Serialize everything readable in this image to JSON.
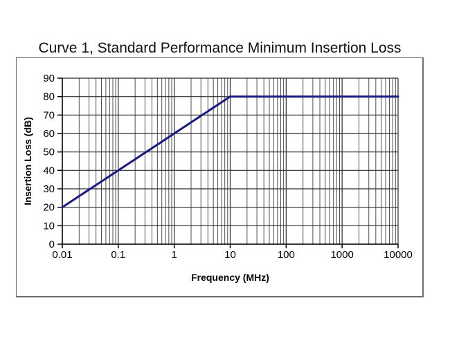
{
  "title": "Curve 1, Standard Performance Minimum Insertion Loss",
  "chart_data": {
    "type": "line",
    "title": "Curve 1, Standard Performance Minimum Insertion Loss",
    "xlabel": "Frequency (MHz)",
    "ylabel": "Insertion Loss (dB)",
    "x_scale": "log",
    "y_scale": "linear",
    "xlim": [
      0.01,
      10000
    ],
    "ylim": [
      0,
      90
    ],
    "x_ticks": [
      0.01,
      0.1,
      1,
      10,
      100,
      1000,
      10000
    ],
    "x_tick_labels": [
      "0.01",
      "0.1",
      "1",
      "10",
      "100",
      "1000",
      "10000"
    ],
    "y_ticks": [
      0,
      10,
      20,
      30,
      40,
      50,
      60,
      70,
      80,
      90
    ],
    "y_tick_labels": [
      "0",
      "10",
      "20",
      "30",
      "40",
      "50",
      "60",
      "70",
      "80",
      "90"
    ],
    "grid": "x-major-and-minor, y-major",
    "legend": "none",
    "series": [
      {
        "name": "Curve 1",
        "points": [
          [
            0.01,
            20
          ],
          [
            10,
            80
          ],
          [
            10000,
            80
          ]
        ],
        "color": "#191983",
        "width": 3
      }
    ],
    "colors": {
      "grid_minor": "#4f4f4f",
      "grid_major": "#2b2b2b",
      "axis": "#000000",
      "plot_border": "#6e6e6e",
      "text": "#000000"
    }
  }
}
